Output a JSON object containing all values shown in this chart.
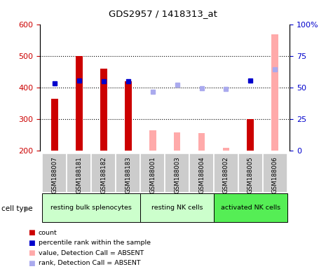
{
  "title": "GDS2957 / 1418313_at",
  "samples": [
    "GSM188007",
    "GSM188181",
    "GSM188182",
    "GSM188183",
    "GSM188001",
    "GSM188003",
    "GSM188004",
    "GSM188002",
    "GSM188005",
    "GSM188006"
  ],
  "count_values": [
    365,
    500,
    460,
    420,
    null,
    null,
    null,
    null,
    300,
    null
  ],
  "count_absent_values": [
    null,
    null,
    null,
    null,
    265,
    258,
    255,
    210,
    null,
    568
  ],
  "rank_present": [
    413,
    422,
    420,
    419,
    null,
    null,
    null,
    null,
    422,
    null
  ],
  "rank_absent": [
    null,
    null,
    null,
    null,
    386,
    408,
    398,
    396,
    null,
    457
  ],
  "cell_groups": [
    {
      "label": "resting bulk splenocytes",
      "start": 0,
      "end": 4
    },
    {
      "label": "resting NK cells",
      "start": 4,
      "end": 7
    },
    {
      "label": "activated NK cells",
      "start": 7,
      "end": 10
    }
  ],
  "ylim_left": [
    200,
    600
  ],
  "ylim_right": [
    0,
    100
  ],
  "yticks_left": [
    200,
    300,
    400,
    500,
    600
  ],
  "yticks_right": [
    0,
    25,
    50,
    75,
    100
  ],
  "yticklabels_right": [
    "0",
    "25",
    "50",
    "75",
    "100%"
  ],
  "color_count_present": "#cc0000",
  "color_count_absent": "#ffaaaa",
  "color_rank_present": "#0000cc",
  "color_rank_absent": "#aaaaee",
  "bar_width": 0.28,
  "bg_color_samples": "#cccccc",
  "bg_color_group1": "#ccffcc",
  "bg_color_group2": "#55ee55",
  "group_colors": [
    "#ccffcc",
    "#ccffcc",
    "#55ee55"
  ],
  "gridline_ticks": [
    300,
    400,
    500
  ]
}
